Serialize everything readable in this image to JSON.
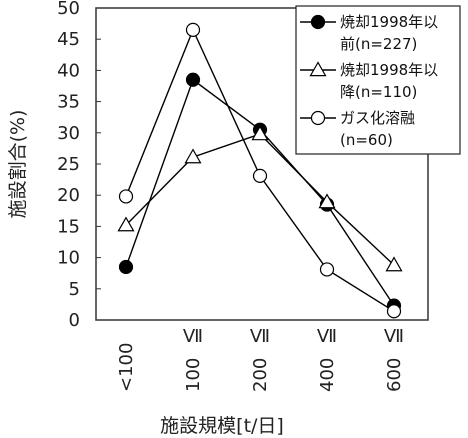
{
  "chart_data": {
    "type": "line",
    "categories": [
      "<100",
      "100Ⅶ",
      "200Ⅶ",
      "400Ⅶ",
      "600Ⅶ"
    ],
    "category_labels": [
      {
        "rotated": "<100",
        "symbol": ""
      },
      {
        "rotated": "100",
        "symbol": "Ⅶ"
      },
      {
        "rotated": "200",
        "symbol": "Ⅶ"
      },
      {
        "rotated": "400",
        "symbol": "Ⅶ"
      },
      {
        "rotated": "600",
        "symbol": "Ⅶ"
      }
    ],
    "xlabel": "施設規模[t/日]",
    "ylabel": "施設割合(%)",
    "ylim": [
      0,
      50
    ],
    "yticks": [
      "0",
      "5",
      "10",
      "15",
      "20",
      "25",
      "30",
      "35",
      "40",
      "45",
      "50"
    ],
    "grid": false,
    "legend_position": "top-right",
    "series": [
      {
        "name_lines": [
          "焼却1998年以",
          "前(n=227)"
        ],
        "marker": "filled-circle",
        "values": [
          8.5,
          38.5,
          30.5,
          18.5,
          2.3
        ]
      },
      {
        "name_lines": [
          "焼却1998年以",
          "降(n=110)"
        ],
        "marker": "open-triangle",
        "values": [
          15.2,
          26.1,
          29.8,
          18.9,
          8.8
        ]
      },
      {
        "name_lines": [
          "ガス化溶融",
          "(n=60)"
        ],
        "marker": "open-circle",
        "values": [
          19.8,
          46.5,
          23.1,
          8.1,
          1.4
        ]
      }
    ],
    "colors": {
      "line": "#000000",
      "frame": "#333333",
      "background": "#ffffff"
    }
  }
}
